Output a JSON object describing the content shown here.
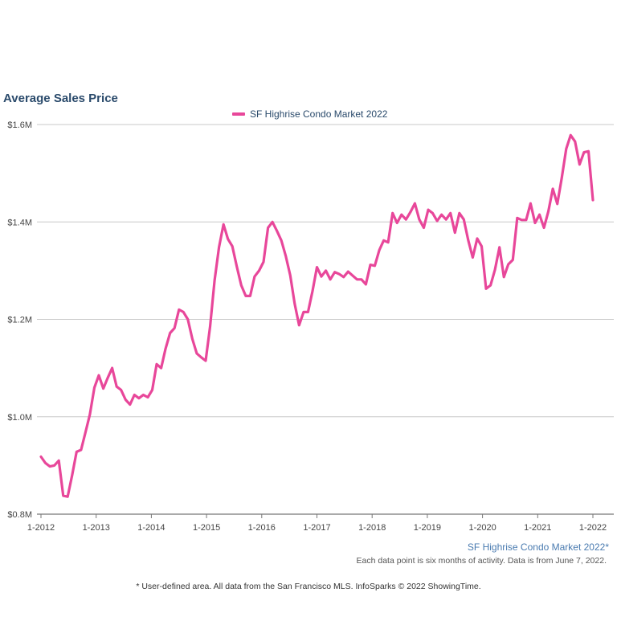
{
  "chart_data": {
    "type": "line",
    "title": "Average Sales Price",
    "ylim": [
      800000,
      1600000
    ],
    "y_ticks": [
      "$0.8M",
      "$1.0M",
      "$1.2M",
      "$1.4M",
      "$1.6M"
    ],
    "y_tick_values": [
      800000,
      1000000,
      1200000,
      1400000,
      1600000
    ],
    "x_ticks": [
      "1-2012",
      "1-2013",
      "1-2014",
      "1-2015",
      "1-2016",
      "1-2017",
      "1-2018",
      "1-2019",
      "1-2020",
      "1-2021",
      "1-2022"
    ],
    "x_start_year": 2012,
    "grid": true,
    "legend_position": "top-center",
    "series": [
      {
        "name": "SF Highrise Condo Market 2022",
        "color": "#e8479a",
        "values": [
          918000,
          905000,
          898000,
          900000,
          910000,
          838000,
          836000,
          880000,
          928000,
          932000,
          968000,
          1005000,
          1060000,
          1085000,
          1058000,
          1080000,
          1100000,
          1062000,
          1055000,
          1035000,
          1025000,
          1045000,
          1038000,
          1045000,
          1040000,
          1055000,
          1108000,
          1100000,
          1140000,
          1172000,
          1182000,
          1220000,
          1215000,
          1200000,
          1160000,
          1130000,
          1122000,
          1115000,
          1185000,
          1280000,
          1348000,
          1395000,
          1365000,
          1350000,
          1308000,
          1270000,
          1248000,
          1248000,
          1288000,
          1300000,
          1318000,
          1388000,
          1400000,
          1382000,
          1362000,
          1330000,
          1290000,
          1232000,
          1188000,
          1215000,
          1215000,
          1258000,
          1307000,
          1288000,
          1300000,
          1282000,
          1297000,
          1293000,
          1287000,
          1298000,
          1290000,
          1282000,
          1282000,
          1272000,
          1312000,
          1310000,
          1342000,
          1362000,
          1358000,
          1418000,
          1398000,
          1415000,
          1405000,
          1420000,
          1438000,
          1405000,
          1388000,
          1425000,
          1418000,
          1402000,
          1415000,
          1405000,
          1418000,
          1378000,
          1418000,
          1405000,
          1362000,
          1327000,
          1366000,
          1350000,
          1263000,
          1270000,
          1302000,
          1348000,
          1287000,
          1313000,
          1322000,
          1408000,
          1404000,
          1404000,
          1438000,
          1398000,
          1415000,
          1388000,
          1422000,
          1468000,
          1437000,
          1490000,
          1550000,
          1578000,
          1565000,
          1518000,
          1543000,
          1545000,
          1445000
        ]
      }
    ]
  },
  "legend": {
    "label": "SF Highrise Condo Market 2022"
  },
  "footer": {
    "series_label": "SF Highrise Condo Market 2022*",
    "note": "Each data point is six months of activity. Data is from June 7, 2022.",
    "source": "* User-defined area. All data from the San Francisco MLS. InfoSparks © 2022 ShowingTime."
  }
}
